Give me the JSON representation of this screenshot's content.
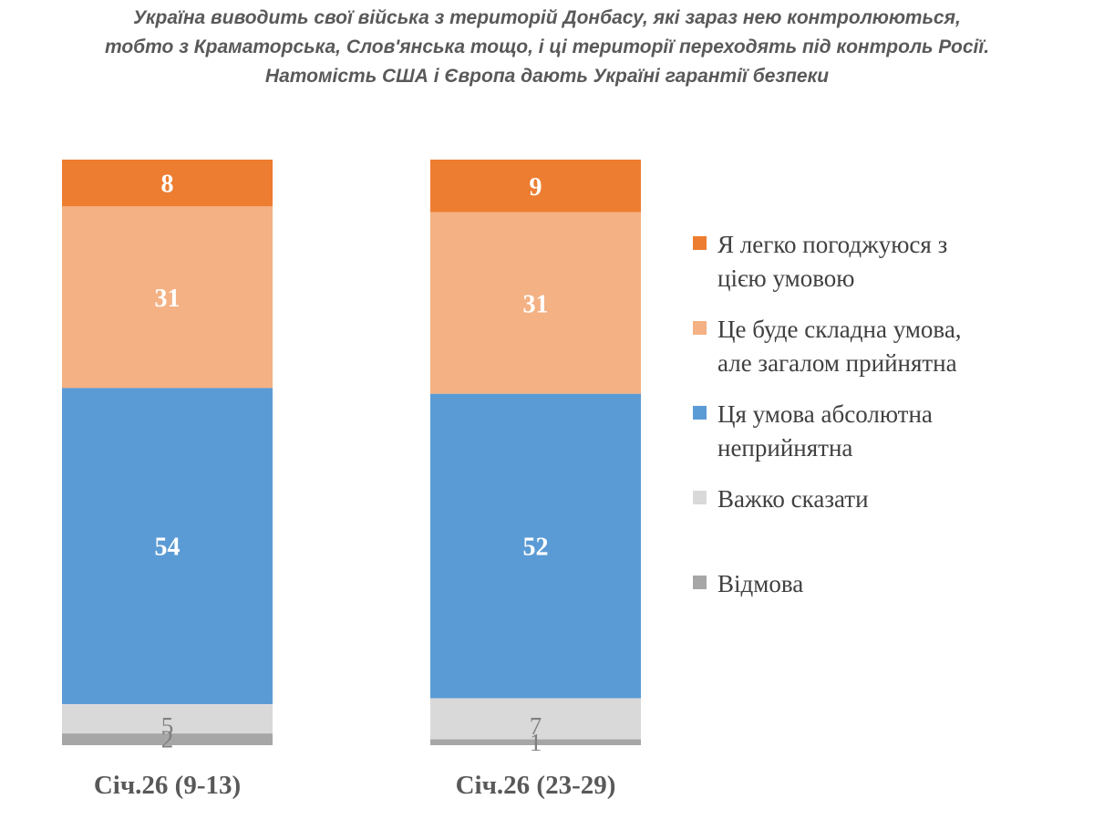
{
  "title_lines": [
    "Україна виводить свої війська з територій Донбасу, які зараз нею контролюються,",
    "тобто з Краматорська, Слов'янська тощо, і ці території переходять під контроль Росії.",
    "Натомість США і Європа дають Україні гарантії безпеки"
  ],
  "colors": {
    "easily_agree": "#ED7D31",
    "difficult_acceptable": "#F4B183",
    "unacceptable": "#5B9BD5",
    "hard_to_say": "#D9D9D9",
    "refusal": "#A6A6A6"
  },
  "legend": [
    {
      "label_lines": [
        "Я легко погоджуюся з",
        "цією умовою"
      ],
      "color": "#ED7D31"
    },
    {
      "label_lines": [
        "Це буде складна умова,",
        "але загалом прийнятна"
      ],
      "color": "#F4B183"
    },
    {
      "label_lines": [
        "Ця умова абсолютна",
        "неприйнятна"
      ],
      "color": "#5B9BD5"
    },
    {
      "label_lines": [
        "Важко сказати"
      ],
      "color": "#D9D9D9"
    },
    {
      "label_lines": [
        "Відмова"
      ],
      "color": "#A6A6A6"
    }
  ],
  "chart_data": {
    "type": "bar",
    "stacked": true,
    "orientation": "vertical",
    "unit": "%",
    "categories": [
      "Січ.26 (9-13)",
      "Січ.26 (23-29)"
    ],
    "series": [
      {
        "name": "Я легко погоджуюся з цією умовою",
        "values": [
          8,
          9
        ]
      },
      {
        "name": "Це буде складна умова, але загалом прийнятна",
        "values": [
          31,
          31
        ]
      },
      {
        "name": "Ця умова абсолютна неприйнятна",
        "values": [
          54,
          52
        ]
      },
      {
        "name": "Важко сказати",
        "values": [
          5,
          7
        ]
      },
      {
        "name": "Відмова",
        "values": [
          2,
          1
        ]
      }
    ],
    "stack_order_top_to_bottom": [
      "Я легко погоджуюся з цією умовою",
      "Це буде складна умова, але загалом прийнятна",
      "Ця умова абсолютна неприйнятна",
      "Важко сказати",
      "Відмова"
    ],
    "data_labels": true,
    "legend_position": "right",
    "grid": false,
    "y_axis_visible": false
  }
}
